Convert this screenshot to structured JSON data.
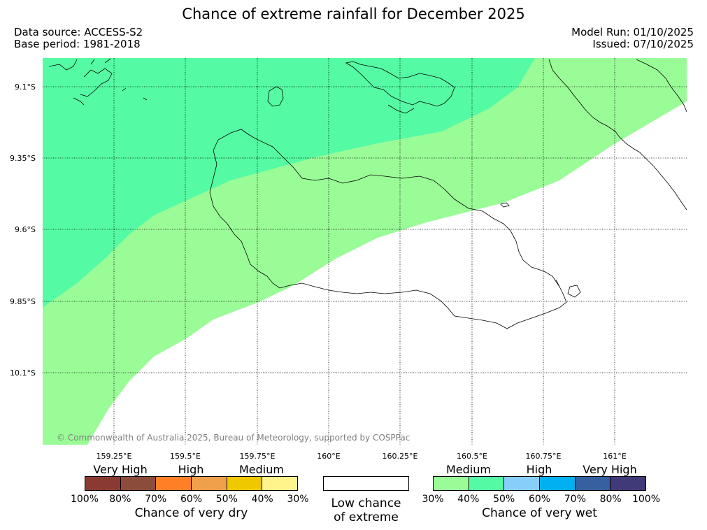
{
  "title": "Chance of extreme rainfall for December 2025",
  "meta": {
    "data_source": "Data source: ACCESS-S2",
    "base_period": "Base period: 1981-2018",
    "model_run": "Model Run: 01/10/2025",
    "issued": "Issued: 07/10/2025"
  },
  "map": {
    "lat_labels": [
      "9.1°S",
      "9.35°S",
      "9.6°S",
      "9.85°S",
      "10.1°S"
    ],
    "lon_labels": [
      "159.25°E",
      "159.5°E",
      "159.75°E",
      "160°E",
      "160.25°E",
      "160.5°E",
      "160.75°E",
      "161°E"
    ],
    "zone_colors": {
      "wet_medium_30_40": "#9afc97",
      "wet_medium_40_50": "#55fba4"
    },
    "copyright": "© Commonwealth of Australia 2025, Bureau of Meteorology, supported by COSPPac"
  },
  "legend": {
    "dry": {
      "categories": [
        "Very High",
        "High",
        "Medium"
      ],
      "colors": [
        "#8b3a32",
        "#8b4c3c",
        "#ff7f27",
        "#f0a04b",
        "#f0c800",
        "#fff48c"
      ],
      "ticks": [
        "100%",
        "80%",
        "70%",
        "60%",
        "50%",
        "40%",
        "30%"
      ],
      "caption": "Chance of very dry"
    },
    "neutral": {
      "caption_line1": "Low chance",
      "caption_line2": "of extreme"
    },
    "wet": {
      "categories": [
        "Medium",
        "High",
        "Very High"
      ],
      "colors": [
        "#9afc97",
        "#55fba4",
        "#87cefa",
        "#00b0f0",
        "#3660a0",
        "#413a78"
      ],
      "ticks": [
        "30%",
        "40%",
        "50%",
        "60%",
        "70%",
        "80%",
        "100%"
      ],
      "caption": "Chance of very wet"
    }
  }
}
